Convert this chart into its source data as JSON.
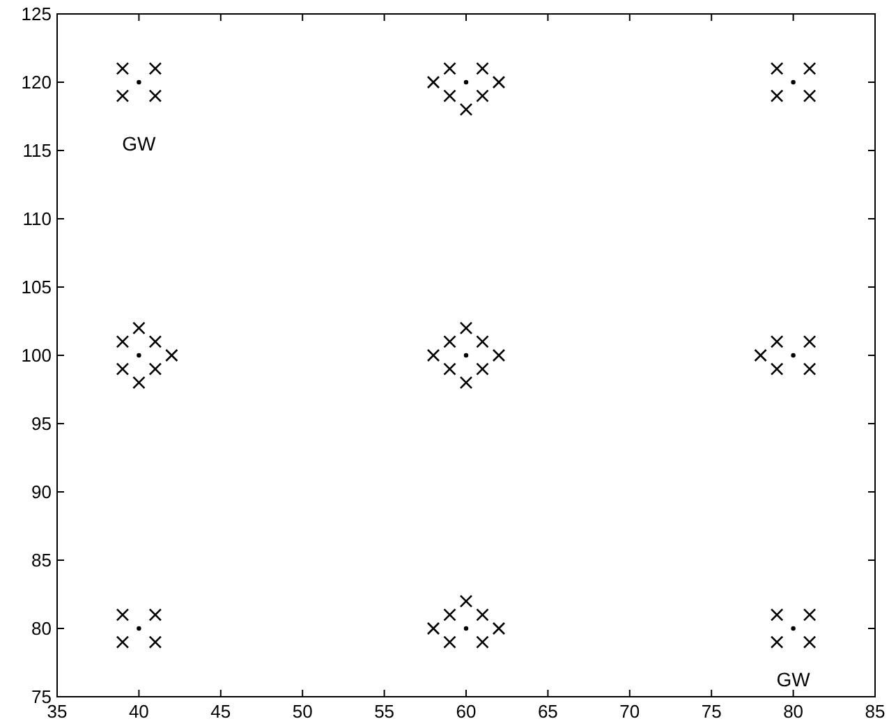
{
  "chart_data": {
    "type": "scatter",
    "xlim": [
      35,
      85
    ],
    "ylim": [
      75,
      125
    ],
    "xticks": [
      35,
      40,
      45,
      50,
      55,
      60,
      65,
      70,
      75,
      80,
      85
    ],
    "yticks": [
      75,
      80,
      85,
      90,
      95,
      100,
      105,
      110,
      115,
      120,
      125
    ],
    "grid": false,
    "series": [
      {
        "marker": "circle",
        "color": "#000000",
        "x": [
          40,
          60,
          80,
          40,
          60,
          80,
          40,
          60,
          80
        ],
        "values": [
          120,
          120,
          120,
          100,
          100,
          100,
          80,
          80,
          80
        ]
      },
      {
        "marker": "cross",
        "color": "#000000",
        "x": [
          39,
          41,
          39,
          41,
          59,
          61,
          58,
          62,
          59,
          61,
          60,
          79,
          81,
          79,
          81,
          40,
          39,
          41,
          39,
          41,
          42,
          40,
          60,
          59,
          61,
          58,
          62,
          59,
          61,
          60,
          78,
          79,
          81,
          79,
          81,
          39,
          41,
          39,
          41,
          60,
          59,
          61,
          58,
          62,
          59,
          61,
          79,
          81,
          79,
          81
        ],
        "values": [
          121,
          121,
          119,
          119,
          121,
          121,
          120,
          120,
          119,
          119,
          118,
          121,
          121,
          119,
          119,
          102,
          101,
          101,
          99,
          99,
          100,
          98,
          102,
          101,
          101,
          100,
          100,
          99,
          99,
          98,
          100,
          101,
          101,
          99,
          99,
          81,
          81,
          79,
          79,
          82,
          81,
          81,
          80,
          80,
          79,
          79,
          81,
          81,
          79,
          79
        ]
      }
    ],
    "annotations": [
      "GW",
      "GW"
    ]
  }
}
